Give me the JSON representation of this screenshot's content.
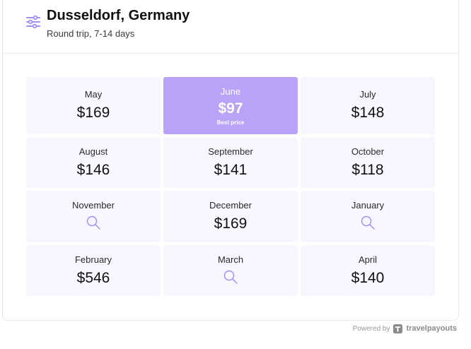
{
  "header": {
    "title": "Dusseldorf, Germany",
    "subtitle": "Round trip, 7-14 days",
    "filter_icon": "sliders-icon"
  },
  "best_price_label": "Best price",
  "months": [
    {
      "month": "May",
      "price": "$169"
    },
    {
      "month": "June",
      "price": "$97",
      "best": true
    },
    {
      "month": "July",
      "price": "$148"
    },
    {
      "month": "August",
      "price": "$146"
    },
    {
      "month": "September",
      "price": "$141"
    },
    {
      "month": "October",
      "price": "$118"
    },
    {
      "month": "November",
      "price": null,
      "icon": "search-icon"
    },
    {
      "month": "December",
      "price": "$169"
    },
    {
      "month": "January",
      "price": null,
      "icon": "search-icon"
    },
    {
      "month": "February",
      "price": "$546"
    },
    {
      "month": "March",
      "price": null,
      "icon": "search-icon"
    },
    {
      "month": "April",
      "price": "$140"
    }
  ],
  "footer": {
    "powered_by": "Powered by",
    "brand": "travelpayouts"
  },
  "colors": {
    "accent": "#b9a3f8",
    "cell_bg": "#f8f7ff",
    "icon": "#a58ff5"
  }
}
